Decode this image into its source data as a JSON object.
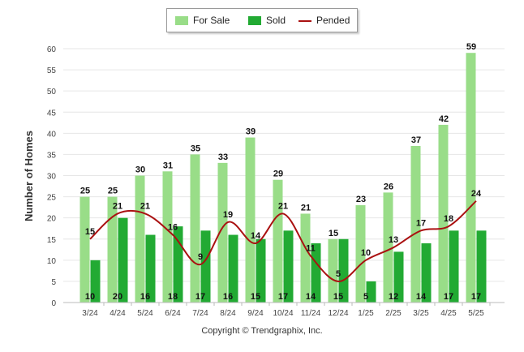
{
  "chart_data": {
    "type": "bar",
    "categories": [
      "3/24",
      "4/24",
      "5/24",
      "6/24",
      "7/24",
      "8/24",
      "9/24",
      "10/24",
      "11/24",
      "12/24",
      "1/25",
      "2/25",
      "3/25",
      "4/25",
      "5/25"
    ],
    "series": [
      {
        "name": "For Sale",
        "kind": "bar",
        "color": "#99dd88",
        "values": [
          25,
          25,
          30,
          31,
          35,
          33,
          39,
          29,
          21,
          15,
          23,
          26,
          37,
          42,
          59
        ]
      },
      {
        "name": "Sold",
        "kind": "bar",
        "color": "#22aa33",
        "values": [
          10,
          20,
          16,
          18,
          17,
          16,
          15,
          17,
          14,
          15,
          5,
          12,
          14,
          17,
          17
        ]
      },
      {
        "name": "Pended",
        "kind": "line",
        "color": "#aa1111",
        "values": [
          15,
          21,
          21,
          16,
          9,
          19,
          14,
          21,
          11,
          5,
          10,
          13,
          17,
          18,
          24
        ]
      }
    ],
    "ylabel": "Number of Homes",
    "ylim": [
      0,
      60
    ],
    "yticks": [
      0,
      5,
      10,
      15,
      20,
      25,
      30,
      35,
      40,
      45,
      50,
      55,
      60
    ],
    "grid": true,
    "legend": "top-center"
  },
  "footer": {
    "copyright": "Copyright © Trendgraphix, Inc."
  }
}
